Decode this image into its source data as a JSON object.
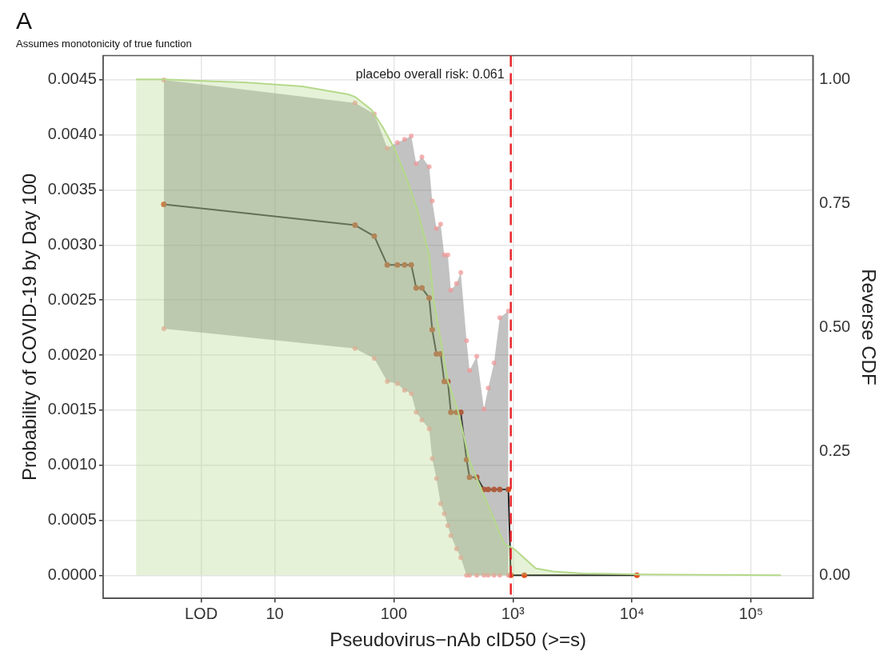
{
  "chart_data": {
    "type": "line",
    "title": "A",
    "subtitle": "Assumes monotonicity of true function",
    "xlabel": "Pseudovirus−nAb cID50 (>=s)",
    "ylabel": "Probability of COVID-19 by Day 100",
    "y2label": "Reverse CDF",
    "log": "x",
    "xlim": [
      0.362,
      330000
    ],
    "xticks": [
      {
        "value": 2.41,
        "label": "LOD"
      },
      10,
      100,
      {
        "value": 1000,
        "label": "10³"
      },
      {
        "value": 10000,
        "label": "10⁴"
      },
      {
        "value": 100000,
        "label": "10⁵"
      }
    ],
    "ylim": [
      -0.00021,
      0.00472
    ],
    "yticks": [
      {
        "value": 0,
        "label": "0.0000"
      },
      {
        "value": 0.0005,
        "label": "0.0005"
      },
      {
        "value": 0.001,
        "label": "0.0010"
      },
      {
        "value": 0.0015,
        "label": "0.0015"
      },
      {
        "value": 0.002,
        "label": "0.0020"
      },
      {
        "value": 0.0025,
        "label": "0.0025"
      },
      {
        "value": 0.003,
        "label": "0.0030"
      },
      {
        "value": 0.0035,
        "label": "0.0035"
      },
      {
        "value": 0.004,
        "label": "0.0040"
      },
      {
        "value": 0.0045,
        "label": "0.0045"
      }
    ],
    "y2lim": [
      -0.0465,
      1.048
    ],
    "y2ticks": [
      {
        "value": 0,
        "label": "0.00"
      },
      {
        "value": 0.25,
        "label": "0.25"
      },
      {
        "value": 0.5,
        "label": "0.50"
      },
      {
        "value": 0.75,
        "label": "0.75"
      },
      {
        "value": 1,
        "label": "1.00"
      }
    ],
    "grid": true,
    "legend": false,
    "marker": "circle",
    "series": [
      {
        "type": "area",
        "axis": "y2",
        "marker": "none",
        "color": "#b5d98a",
        "x": [
          0.684,
          1.17,
          5.6,
          17,
          41.5,
          47.2,
          64.8,
          81,
          101,
          127,
          158,
          198,
          215,
          284,
          346,
          432,
          540,
          675,
          843,
          1026,
          1557,
          2178,
          3800,
          11600,
          178000
        ],
        "values": [
          1.0,
          1.0,
          0.994,
          0.986,
          0.97,
          0.965,
          0.939,
          0.903,
          0.861,
          0.803,
          0.736,
          0.647,
          0.558,
          0.392,
          0.331,
          0.231,
          0.175,
          0.12,
          0.064,
          0.053,
          0.014,
          0.008,
          0.004,
          0.002,
          0
        ]
      },
      {
        "type": "scatter",
        "color": "#f09696",
        "x": [
          1.17,
          47.2,
          68.5,
          88,
          107,
          123,
          140,
          154,
          172,
          198,
          210,
          228,
          247,
          265,
          284,
          301,
          336,
          365,
          408,
          432,
          497,
          571,
          620,
          694,
          775,
          916
        ],
        "values": [
          0.00224,
          0.00206,
          0.00197,
          0.00176,
          0.00174,
          0.00168,
          0.00165,
          0.00148,
          0.00141,
          0.00133,
          0.00106,
          0.00088,
          0.00065,
          0.00056,
          0.00045,
          0.00036,
          0.00024,
          0.00016,
          0,
          0,
          0,
          0,
          0,
          0,
          0,
          0
        ]
      },
      {
        "type": "scatter",
        "color": "#f09696",
        "x": [
          1.17,
          47.2,
          68.5,
          88,
          107,
          123,
          140,
          154,
          172,
          198,
          210,
          228,
          247,
          265,
          284,
          301,
          336,
          365,
          408,
          432,
          497,
          571,
          620,
          694,
          775,
          916
        ],
        "values": [
          0.0045,
          0.00429,
          0.00419,
          0.00388,
          0.00393,
          0.00396,
          0.00399,
          0.00374,
          0.0038,
          0.00371,
          0.0034,
          0.00315,
          0.00319,
          0.00291,
          0.00291,
          0.00259,
          0.00265,
          0.00275,
          0.00213,
          0.00186,
          0.00199,
          0.00151,
          0.0017,
          0.00193,
          0.00234,
          0.0024
        ]
      },
      {
        "color": "#1a1a1a",
        "x": [
          1.17,
          47.2,
          68.5,
          88,
          107,
          123,
          140,
          154,
          172,
          198,
          210,
          228,
          247,
          265,
          284,
          301,
          336,
          365,
          408,
          432,
          497,
          571,
          620,
          694,
          775,
          916,
          959,
          1247,
          11000
        ],
        "values": [
          0.00337,
          0.00318,
          0.00308,
          0.00282,
          0.00282,
          0.00282,
          0.00282,
          0.00261,
          0.00261,
          0.00252,
          0.00223,
          0.00201,
          0.00201,
          0.00176,
          0.00176,
          0.00148,
          0.00148,
          0.00148,
          0.00105,
          0.00089,
          0.00089,
          0.00078,
          0.00078,
          0.00078,
          0.00078,
          0.00078,
          0,
          0,
          0
        ],
        "lower": [
          0.00224,
          0.00206,
          0.00197,
          0.00176,
          0.00174,
          0.00168,
          0.00165,
          0.00148,
          0.00141,
          0.00133,
          0.00106,
          0.00088,
          0.00065,
          0.00056,
          0.00045,
          0.00036,
          0.00024,
          0.00016,
          0,
          0,
          0,
          0,
          0,
          0,
          0,
          0,
          null,
          null,
          null
        ],
        "upper": [
          0.0045,
          0.00429,
          0.00419,
          0.00388,
          0.00393,
          0.00396,
          0.00399,
          0.00374,
          0.0038,
          0.00371,
          0.0034,
          0.00315,
          0.00319,
          0.00291,
          0.00291,
          0.00259,
          0.00265,
          0.00275,
          0.00213,
          0.00186,
          0.00199,
          0.00151,
          0.0017,
          0.00193,
          0.00234,
          0.0024,
          null,
          null,
          null
        ]
      }
    ],
    "ref_lines": [
      {
        "axis": "x",
        "value": 960,
        "color": "#e8262b",
        "line_style": "dashed"
      }
    ],
    "annotations": [
      "placebo overall risk: 0.061"
    ]
  }
}
